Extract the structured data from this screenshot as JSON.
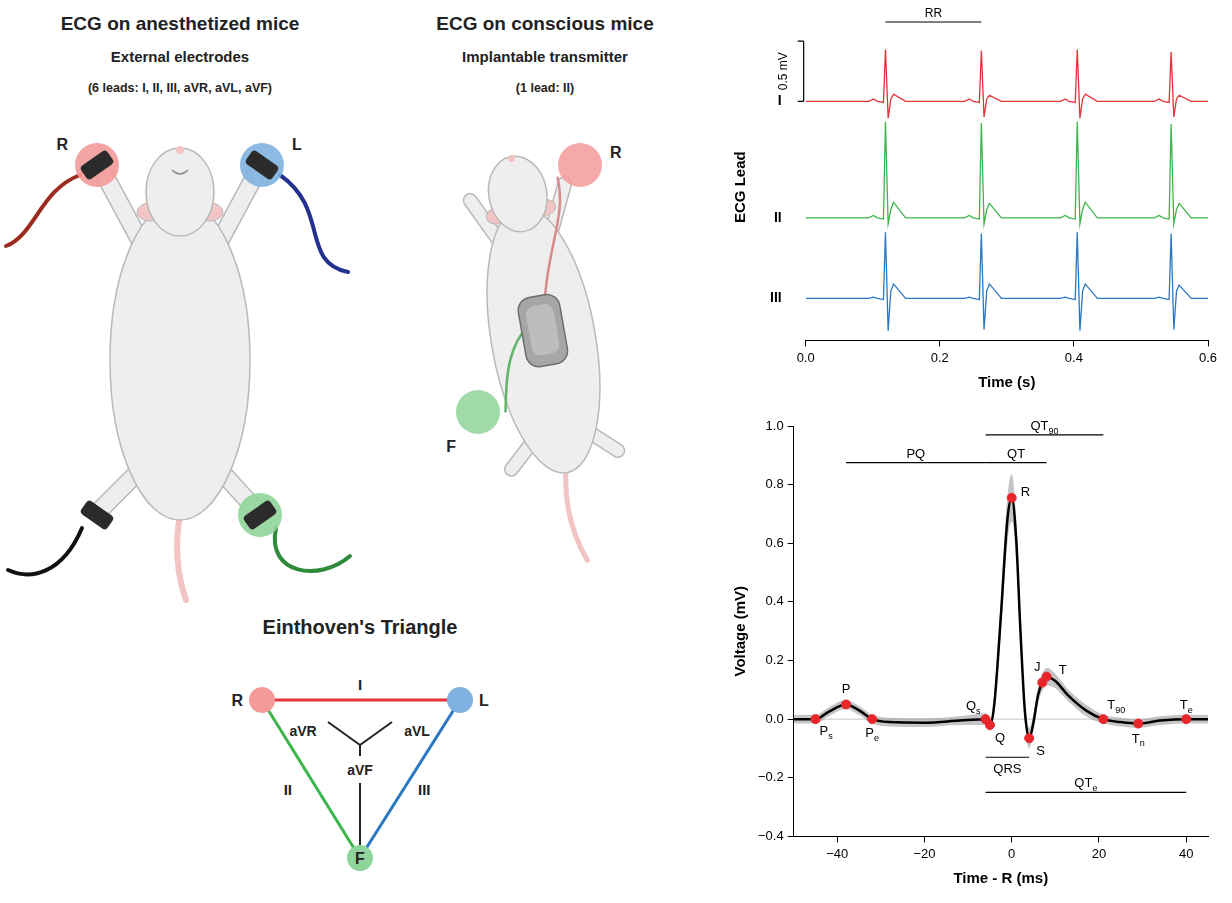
{
  "panels": [
    {
      "title": "ECG on anesthetized mice",
      "subtitle": "External electrodes",
      "note": "(6 leads: I, II, III, aVR, aVL, aVF)",
      "electrodes": [
        {
          "label": "R",
          "color": "#f49a9a"
        },
        {
          "label": "L",
          "color": "#7fb2df"
        },
        {
          "color": "#8fd49a"
        }
      ]
    },
    {
      "title": "ECG on conscious mice",
      "subtitle": "Implantable transmitter",
      "note": "(1 lead: II)",
      "electrodes": [
        {
          "label": "R",
          "color": "#f49a9a"
        },
        {
          "label": "F",
          "color": "#8fd49a"
        }
      ]
    }
  ],
  "einthoven": {
    "title": "Einthoven's Triangle",
    "vertices": [
      {
        "label": "R",
        "color": "#f49a9a"
      },
      {
        "label": "L",
        "color": "#7fb2df"
      },
      {
        "label": "F",
        "color": "#8fd49a"
      }
    ],
    "leads": [
      {
        "label": "I",
        "color": "#e5323b"
      },
      {
        "label": "II",
        "color": "#3cb54a"
      },
      {
        "label": "III",
        "color": "#2a78c2"
      }
    ],
    "augmented_leads": [
      "aVR",
      "aVL",
      "aVF"
    ]
  },
  "chart_data": [
    {
      "type": "line",
      "x_label": "Time (s)",
      "y_label": "ECG Lead",
      "x": [
        0,
        0.094,
        0.101,
        0.107,
        0.116,
        0.119,
        0.123,
        0.127,
        0.131,
        0.149,
        0.237,
        0.244,
        0.25,
        0.259,
        0.262,
        0.266,
        0.27,
        0.274,
        0.292,
        0.38,
        0.387,
        0.393,
        0.402,
        0.405,
        0.409,
        0.413,
        0.417,
        0.435,
        0.52,
        0.527,
        0.533,
        0.542,
        0.545,
        0.549,
        0.553,
        0.557,
        0.575,
        0.6
      ],
      "series": [
        {
          "name": "I",
          "color": "#e5323b",
          "values": [
            1.64,
            1.64,
            1.66,
            1.64,
            1.63,
            2.07,
            1.5,
            1.66,
            1.7,
            1.64,
            1.64,
            1.66,
            1.64,
            1.63,
            2.06,
            1.51,
            1.66,
            1.69,
            1.64,
            1.64,
            1.66,
            1.64,
            1.63,
            2.07,
            1.5,
            1.66,
            1.7,
            1.64,
            1.64,
            1.66,
            1.64,
            1.63,
            2.05,
            1.51,
            1.66,
            1.69,
            1.64,
            1.64
          ]
        },
        {
          "name": "II",
          "color": "#3cb54a",
          "values": [
            0.67,
            0.67,
            0.69,
            0.67,
            0.66,
            1.47,
            0.62,
            0.74,
            0.8,
            0.67,
            0.67,
            0.69,
            0.67,
            0.66,
            1.46,
            0.62,
            0.74,
            0.79,
            0.67,
            0.67,
            0.69,
            0.67,
            0.66,
            1.47,
            0.62,
            0.74,
            0.8,
            0.67,
            0.67,
            0.69,
            0.67,
            0.66,
            1.45,
            0.62,
            0.74,
            0.79,
            0.67,
            0.67
          ]
        },
        {
          "name": "III",
          "color": "#2a78c2",
          "values": [
            0,
            0,
            0.01,
            0,
            -0.01,
            0.55,
            -0.27,
            0.06,
            0.12,
            0,
            0,
            0.01,
            0,
            -0.01,
            0.54,
            -0.26,
            0.06,
            0.12,
            0,
            0,
            0.01,
            0,
            -0.01,
            0.55,
            -0.27,
            0.06,
            0.12,
            0,
            0,
            0.01,
            0,
            -0.01,
            0.54,
            -0.26,
            0.06,
            0.11,
            0,
            0
          ]
        }
      ],
      "xlim": [
        0,
        0.6
      ],
      "xticks": [
        {
          "value": 0,
          "label": "0.0"
        },
        0.2,
        0.4,
        0.6
      ],
      "ylim": [
        -0.35,
        2.2
      ],
      "yticks": [
        {
          "value": 1.64,
          "label": "I"
        },
        {
          "value": 0.67,
          "label": "II"
        },
        {
          "value": 0,
          "label": "III"
        }
      ],
      "grid": false,
      "scale_bar": {
        "label": "0.5 mV",
        "value": 0.5
      },
      "interval": {
        "label": "RR",
        "start": 0.119,
        "end": 0.262
      }
    },
    {
      "type": "line",
      "x_label": "Time - R (ms)",
      "y_label": "Voltage (mV)",
      "color": "#000000",
      "x": [
        -50,
        -45,
        -42,
        -38,
        -35,
        -32,
        -28,
        -20,
        -12,
        -6,
        -5,
        -4,
        -2.5,
        -1,
        0,
        1,
        2,
        3,
        4,
        5,
        6,
        7,
        8,
        10,
        13,
        17,
        21,
        25,
        29,
        34,
        40,
        45
      ],
      "values": [
        0,
        0,
        0.025,
        0.05,
        0.03,
        0,
        -0.01,
        -0.012,
        -0.005,
        0,
        -0.02,
        0.05,
        0.35,
        0.68,
        0.755,
        0.62,
        0.3,
        0.03,
        -0.065,
        -0.01,
        0.08,
        0.125,
        0.145,
        0.13,
        0.08,
        0.03,
        0,
        -0.01,
        -0.015,
        -0.005,
        0,
        0
      ],
      "errors": [
        0.015,
        0.015,
        0.015,
        0.015,
        0.015,
        0.015,
        0.015,
        0.015,
        0.015,
        0.02,
        0.02,
        0.03,
        0.06,
        0.08,
        0.08,
        0.07,
        0.05,
        0.04,
        0.035,
        0.03,
        0.03,
        0.03,
        0.03,
        0.025,
        0.02,
        0.02,
        0.015,
        0.015,
        0.015,
        0.015,
        0.015,
        0.015
      ],
      "xlim": [
        -50,
        45
      ],
      "xticks": [
        {
          "value": -40,
          "label": "−40"
        },
        {
          "value": -20,
          "label": "−20"
        },
        0,
        20,
        40
      ],
      "ylim": [
        -0.4,
        1.0
      ],
      "yticks": [
        {
          "value": -0.4,
          "label": "−0.4"
        },
        {
          "value": -0.2,
          "label": "−0.2"
        },
        {
          "value": 0,
          "label": "0.0"
        },
        0.2,
        0.4,
        0.6,
        0.8,
        {
          "value": 1.0,
          "label": "1.0"
        }
      ],
      "grid": false,
      "reference_line": 0,
      "markers": {
        "color": "#e8262b",
        "points": [
          {
            "label": "P",
            "sub": "s",
            "x": -45,
            "y": 0
          },
          {
            "label": "P",
            "x": -38,
            "y": 0.05
          },
          {
            "label": "P",
            "sub": "e",
            "x": -32,
            "y": 0
          },
          {
            "label": "Q",
            "sub": "s",
            "x": -6,
            "y": 0
          },
          {
            "label": "Q",
            "x": -5,
            "y": -0.02
          },
          {
            "label": "R",
            "x": 0,
            "y": 0.755
          },
          {
            "label": "S",
            "x": 4,
            "y": -0.065
          },
          {
            "label": "J",
            "x": 7,
            "y": 0.125
          },
          {
            "label": "T",
            "x": 8,
            "y": 0.145
          },
          {
            "label": "T",
            "sub": "90",
            "x": 21,
            "y": 0
          },
          {
            "label": "T",
            "sub": "n",
            "x": 29,
            "y": -0.015
          },
          {
            "label": "T",
            "sub": "e",
            "x": 40,
            "y": 0
          }
        ]
      },
      "intervals": [
        {
          "label": "PQ",
          "start": -38,
          "end": -6
        },
        {
          "label": "QT",
          "start": -6,
          "end": 8
        },
        {
          "label": "QT",
          "sub": "90",
          "start": -6,
          "end": 21
        },
        {
          "label": "QRS",
          "start": -6,
          "end": 4
        },
        {
          "label": "QT",
          "sub": "e",
          "start": -6,
          "end": 40
        }
      ]
    }
  ]
}
